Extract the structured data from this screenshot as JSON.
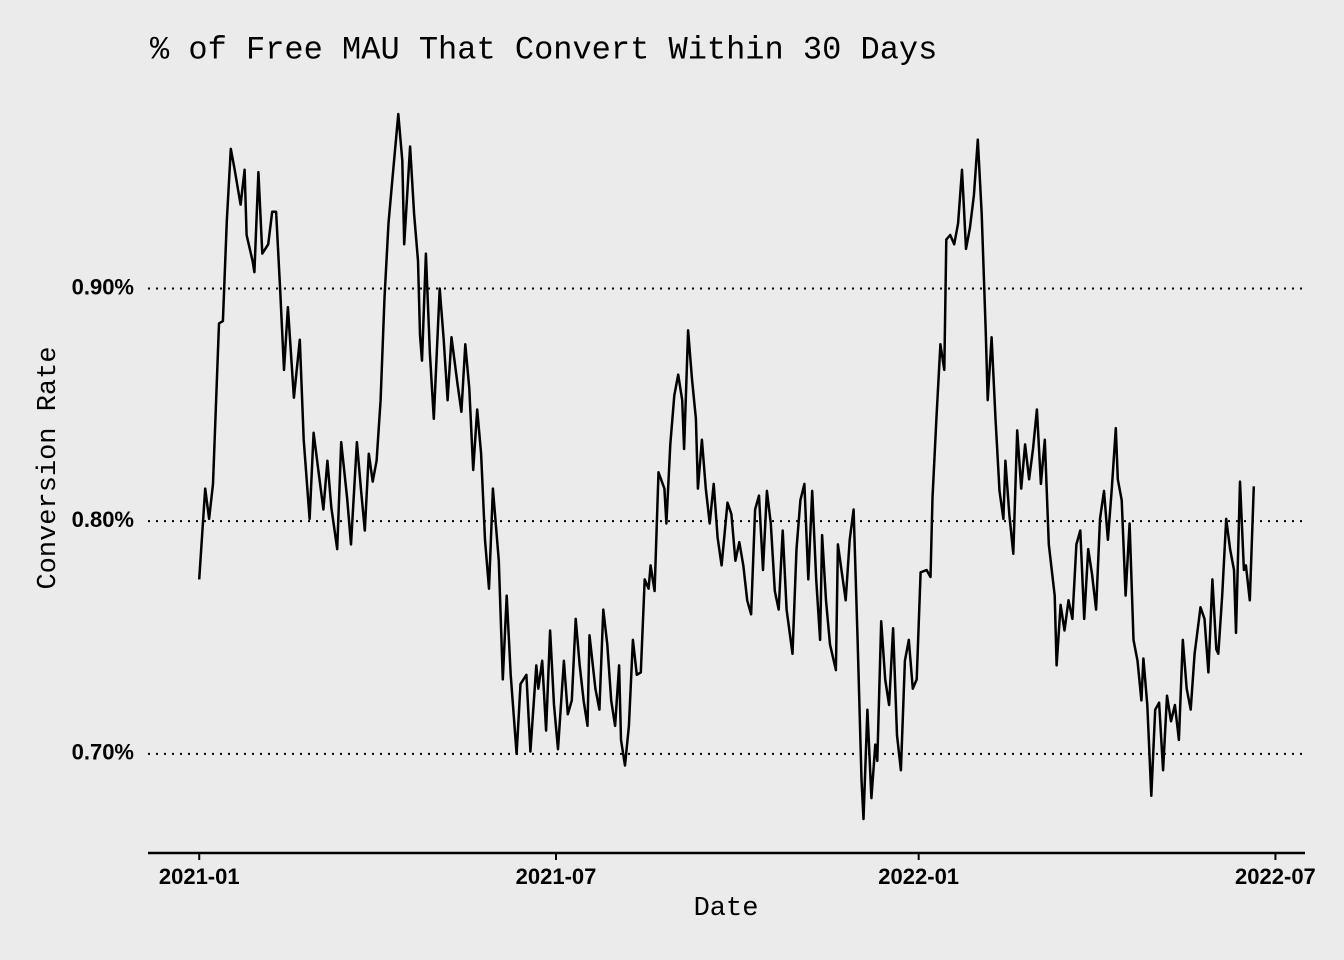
{
  "chart_data": {
    "type": "line",
    "title": "% of Free MAU That Convert Within 30 Days",
    "x_label": "Date",
    "y_label": "Conversion Rate",
    "xlim": [
      -26,
      561
    ],
    "xticks": [
      {
        "value": 0,
        "label": "2021-01"
      },
      {
        "value": 181,
        "label": "2021-07"
      },
      {
        "value": 365,
        "label": "2022-01"
      },
      {
        "value": 546,
        "label": "2022-07"
      }
    ],
    "ylim": [
      0.6574,
      0.981
    ],
    "yticks": [
      {
        "value": 0.7,
        "label": "0.70%"
      },
      {
        "value": 0.8,
        "label": "0.80%"
      },
      {
        "value": 0.9,
        "label": "0.90%"
      }
    ],
    "grid": true,
    "background": "#ebebeb",
    "series": [
      {
        "color": "#000000",
        "x": [
          0,
          3,
          5,
          7,
          10,
          12,
          14,
          16,
          18,
          21,
          23,
          24,
          27,
          28,
          30,
          32,
          35,
          37,
          39,
          41,
          43,
          45,
          48,
          51,
          53,
          56,
          58,
          61,
          63,
          65,
          67,
          70,
          72,
          75,
          77,
          80,
          82,
          84,
          86,
          88,
          90,
          92,
          94,
          96,
          98,
          101,
          103,
          104,
          107,
          109,
          111,
          112,
          113,
          115,
          117,
          119,
          122,
          124,
          126,
          128,
          131,
          133,
          135,
          137,
          139,
          141,
          143,
          145,
          147,
          149,
          152,
          154,
          156,
          158,
          161,
          163,
          166,
          168,
          171,
          172,
          174,
          176,
          178,
          180,
          182,
          185,
          187,
          189,
          191,
          193,
          195,
          197,
          198,
          201,
          203,
          205,
          207,
          209,
          211,
          213,
          214,
          216,
          218,
          220,
          222,
          224,
          226,
          228,
          229,
          231,
          233,
          236,
          237,
          239,
          241,
          243,
          245,
          246,
          248,
          250,
          252,
          253,
          255,
          257,
          259,
          261,
          263,
          265,
          268,
          270,
          272,
          274,
          276,
          278,
          280,
          282,
          284,
          286,
          288,
          290,
          292,
          294,
          296,
          298,
          301,
          303,
          305,
          307,
          309,
          311,
          313,
          315,
          316,
          318,
          320,
          323,
          324,
          326,
          328,
          330,
          332,
          334,
          336,
          337,
          339,
          341,
          343,
          344,
          346,
          348,
          350,
          352,
          354,
          356,
          358,
          360,
          362,
          364,
          366,
          369,
          371,
          372,
          374,
          376,
          378,
          379,
          381,
          383,
          385,
          387,
          389,
          391,
          393,
          395,
          397,
          399,
          400,
          402,
          404,
          406,
          408,
          409,
          411,
          413,
          415,
          417,
          419,
          421,
          423,
          425,
          427,
          429,
          431,
          434,
          435,
          437,
          439,
          441,
          443,
          445,
          447,
          449,
          451,
          453,
          455,
          457,
          459,
          461,
          463,
          465,
          466,
          468,
          470,
          472,
          474,
          476,
          478,
          479,
          481,
          483,
          485,
          487,
          489,
          491,
          493,
          495,
          497,
          499,
          501,
          503,
          505,
          508,
          510,
          512,
          514,
          516,
          517,
          519,
          521,
          523,
          525,
          526,
          528,
          530,
          531,
          533,
          535
        ],
        "values": [
          0.775,
          0.814,
          0.801,
          0.816,
          0.885,
          0.886,
          0.929,
          0.96,
          0.951,
          0.936,
          0.951,
          0.923,
          0.912,
          0.907,
          0.95,
          0.915,
          0.919,
          0.933,
          0.933,
          0.9,
          0.865,
          0.892,
          0.853,
          0.878,
          0.835,
          0.801,
          0.838,
          0.818,
          0.805,
          0.826,
          0.806,
          0.788,
          0.834,
          0.81,
          0.79,
          0.834,
          0.814,
          0.796,
          0.829,
          0.817,
          0.826,
          0.852,
          0.896,
          0.928,
          0.947,
          0.975,
          0.955,
          0.919,
          0.961,
          0.932,
          0.912,
          0.88,
          0.869,
          0.915,
          0.872,
          0.844,
          0.9,
          0.878,
          0.852,
          0.879,
          0.859,
          0.847,
          0.876,
          0.857,
          0.822,
          0.848,
          0.829,
          0.792,
          0.771,
          0.814,
          0.783,
          0.732,
          0.768,
          0.734,
          0.7,
          0.73,
          0.734,
          0.701,
          0.738,
          0.728,
          0.74,
          0.71,
          0.753,
          0.721,
          0.702,
          0.74,
          0.717,
          0.723,
          0.758,
          0.738,
          0.723,
          0.712,
          0.751,
          0.728,
          0.719,
          0.762,
          0.747,
          0.723,
          0.712,
          0.738,
          0.706,
          0.695,
          0.712,
          0.749,
          0.734,
          0.735,
          0.775,
          0.771,
          0.781,
          0.77,
          0.821,
          0.814,
          0.799,
          0.833,
          0.854,
          0.863,
          0.852,
          0.831,
          0.882,
          0.861,
          0.844,
          0.814,
          0.835,
          0.814,
          0.799,
          0.816,
          0.793,
          0.781,
          0.808,
          0.803,
          0.783,
          0.791,
          0.781,
          0.766,
          0.76,
          0.805,
          0.811,
          0.779,
          0.813,
          0.799,
          0.77,
          0.762,
          0.796,
          0.762,
          0.743,
          0.788,
          0.809,
          0.816,
          0.775,
          0.813,
          0.775,
          0.749,
          0.794,
          0.766,
          0.747,
          0.736,
          0.79,
          0.778,
          0.766,
          0.792,
          0.805,
          0.749,
          0.689,
          0.672,
          0.719,
          0.681,
          0.704,
          0.697,
          0.757,
          0.732,
          0.721,
          0.754,
          0.708,
          0.693,
          0.74,
          0.749,
          0.728,
          0.732,
          0.778,
          0.779,
          0.776,
          0.81,
          0.844,
          0.876,
          0.865,
          0.921,
          0.923,
          0.919,
          0.928,
          0.951,
          0.917,
          0.926,
          0.94,
          0.964,
          0.932,
          0.882,
          0.852,
          0.879,
          0.844,
          0.813,
          0.801,
          0.826,
          0.803,
          0.786,
          0.839,
          0.814,
          0.833,
          0.818,
          0.831,
          0.848,
          0.816,
          0.835,
          0.79,
          0.768,
          0.738,
          0.764,
          0.753,
          0.766,
          0.758,
          0.79,
          0.796,
          0.758,
          0.788,
          0.777,
          0.762,
          0.801,
          0.813,
          0.792,
          0.814,
          0.84,
          0.818,
          0.809,
          0.768,
          0.799,
          0.749,
          0.74,
          0.723,
          0.741,
          0.721,
          0.682,
          0.719,
          0.722,
          0.693,
          0.725,
          0.714,
          0.721,
          0.706,
          0.749,
          0.728,
          0.719,
          0.743,
          0.763,
          0.758,
          0.735,
          0.775,
          0.745,
          0.743,
          0.768,
          0.801,
          0.788,
          0.779,
          0.752,
          0.817,
          0.779,
          0.781,
          0.766,
          0.815
        ]
      }
    ]
  }
}
